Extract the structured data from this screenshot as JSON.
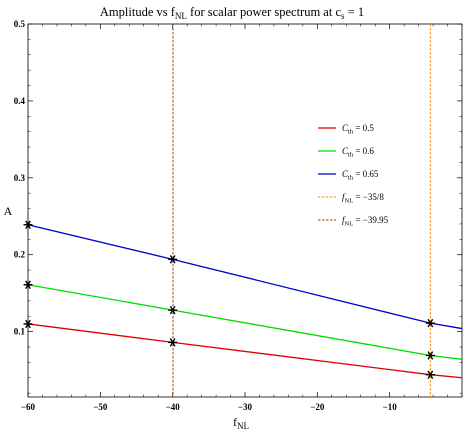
{
  "chart_data": {
    "type": "line",
    "title": {
      "main": "Amplitude vs f",
      "main_sub": "NL",
      "rest": " for scalar power spectrum at c",
      "rest_sub": "s",
      "tail": " = 1"
    },
    "xlabel": {
      "main": "f",
      "sub": "NL"
    },
    "ylabel": "A",
    "xlim": [
      -60,
      0
    ],
    "ylim": [
      0.015,
      0.5
    ],
    "x_ticks": [
      -60,
      -50,
      -40,
      -30,
      -20,
      -10
    ],
    "x_tick_labels": [
      "−60",
      "−50",
      "−40",
      "−30",
      "−20",
      "−10"
    ],
    "y_ticks": [
      0.1,
      0.2,
      0.3,
      0.4,
      0.5
    ],
    "y_tick_labels": [
      "0.1",
      "0.2",
      "0.3",
      "0.4",
      "0.5"
    ],
    "grid": false,
    "legend_position": "right",
    "series": [
      {
        "name": "C_th = 0.5",
        "legend_main": "C",
        "legend_sub": "th",
        "legend_value": " = 0.5",
        "color": "#dd0000",
        "style": "solid",
        "x": [
          -60,
          -40,
          -4.375,
          0
        ],
        "y": [
          0.11,
          0.086,
          0.044,
          0.04
        ]
      },
      {
        "name": "C_th = 0.6",
        "legend_main": "C",
        "legend_sub": "th",
        "legend_value": " = 0.6",
        "color": "#00dd00",
        "style": "solid",
        "x": [
          -60,
          -40,
          -4.375,
          0
        ],
        "y": [
          0.161,
          0.128,
          0.069,
          0.064
        ]
      },
      {
        "name": "C_th = 0.65",
        "legend_main": "C",
        "legend_sub": "th",
        "legend_value": " = 0.65",
        "color": "#0000cc",
        "style": "solid",
        "x": [
          -60,
          -40,
          -4.375,
          0
        ],
        "y": [
          0.239,
          0.194,
          0.111,
          0.104
        ]
      },
      {
        "name": "f_NL = −35/8",
        "legend_main": "f",
        "legend_sub": "NL",
        "legend_value": " = −35/8",
        "color": "#e8901a",
        "style": "dashed",
        "x_value": -4.375
      },
      {
        "name": "f_NL = −39.95",
        "legend_main": "f",
        "legend_sub": "NL",
        "legend_value": " = −39.95",
        "color": "#8b4a1c",
        "style": "dashed",
        "x_value": -39.95
      }
    ],
    "markers": [
      {
        "x": -60,
        "y": 0.11
      },
      {
        "x": -60,
        "y": 0.161
      },
      {
        "x": -60,
        "y": 0.239
      },
      {
        "x": -40,
        "y": 0.086
      },
      {
        "x": -40,
        "y": 0.128
      },
      {
        "x": -40,
        "y": 0.194
      },
      {
        "x": -4.375,
        "y": 0.044
      },
      {
        "x": -4.375,
        "y": 0.069
      },
      {
        "x": -4.375,
        "y": 0.111
      }
    ]
  }
}
